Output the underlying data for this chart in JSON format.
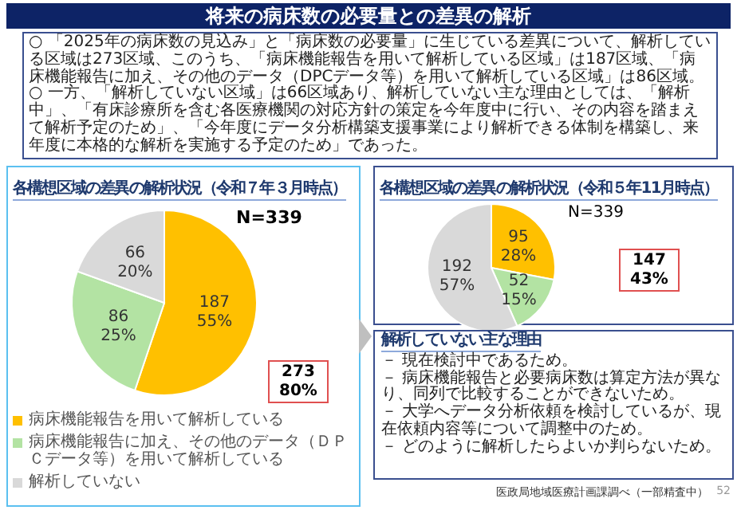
{
  "chart_data": [
    {
      "type": "pie",
      "title": "各構想区域の差異の解析状況（令和７年３月時点）",
      "categories": [
        "病床機能報告を用いて解析している",
        "病床機能報告に加え、その他のデータ（ＤＰＣデータ等）を用いて解析している",
        "解析していない"
      ],
      "values": [
        187,
        86,
        66
      ],
      "colors": [
        "#ffc000",
        "#b3e3a3",
        "#d9d9d9"
      ],
      "value_labels": [
        "187\n55%",
        "86\n25%",
        "66\n20%"
      ],
      "legend": "bottom",
      "annotations": [
        "将来の病床数の必要量との差異の解析",
        "○ 「2025年の病床数の見込み」と「病床数の必要量」に生じている差異について、解析している区域は273区域、このうち、「病床機能報告を用いて解析している区域」は187区域、「病床機能報告に加え、その他のデータ（DPCデータ等）を用いて解析している区域」は86区域。",
        "○ 一方、「解析していない区域」は66区域あり、解析していない主な理由としては、「解析中」、「有床診療所を含む各医療機関の対応方針の策定を今年度中に行い、その内容を踏まえて解析予定のため」、「今年度にデータ分析構築支援事業により解析できる体制を構築し、来年度に本格的な解析を実施する予定のため」であった。",
        "N=339",
        "273\n80%"
      ]
    },
    {
      "type": "pie",
      "title": "各構想区域の差異の解析状況（令和５年11月時点）",
      "categories": [
        null,
        null,
        null
      ],
      "values": [
        95,
        52,
        192
      ],
      "colors": [
        "#ffc000",
        "#b3e3a3",
        "#d9d9d9"
      ],
      "value_labels": [
        "95\n28%",
        "52\n15%",
        "192\n57%"
      ],
      "annotations": [
        "N=339",
        "147\n43%",
        "解析していない主な理由",
        "－ 現在検討中であるため。",
        "－ 病床機能報告と必要病床数は算定方法が異なり、同列で比較することができないため。",
        "－ 大学へデータ分析依頼を検討しているが、現在依頼内容等について調整中のため。",
        "－ どのように解析したらよいか判らないため。",
        "52",
        "医政局地域医療計画課調べ（一部精査中）"
      ]
    }
  ]
}
